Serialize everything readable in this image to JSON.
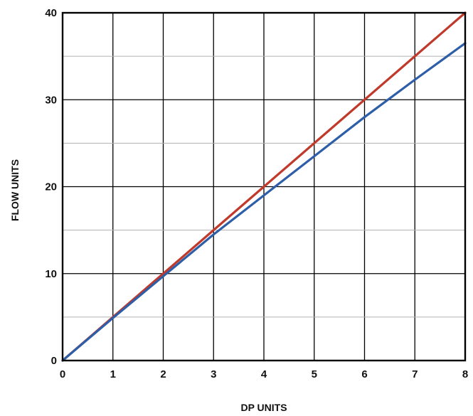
{
  "chart_data": {
    "type": "line",
    "title": "",
    "xlabel": "DP UNITS",
    "ylabel": "FLOW UNITS",
    "xlim": [
      0,
      8
    ],
    "ylim": [
      0,
      40
    ],
    "x_ticks": [
      "0",
      "1",
      "2",
      "3",
      "4",
      "5",
      "6",
      "7",
      "8"
    ],
    "y_ticks": [
      "0",
      "10",
      "20",
      "30",
      "40"
    ],
    "grid": true,
    "legend": "none",
    "series": [
      {
        "color": "#c0392b",
        "x": [
          0,
          1,
          2,
          3,
          4,
          5,
          6,
          7,
          8
        ],
        "y": [
          0,
          5,
          10,
          15,
          20,
          25,
          30,
          35,
          40
        ]
      },
      {
        "color": "#2e5ea8",
        "x": [
          0,
          1,
          2,
          3,
          4,
          5,
          6,
          7,
          8
        ],
        "y": [
          0,
          4.9,
          9.7,
          14.5,
          19.0,
          23.5,
          28.0,
          32.3,
          36.5
        ]
      }
    ]
  }
}
